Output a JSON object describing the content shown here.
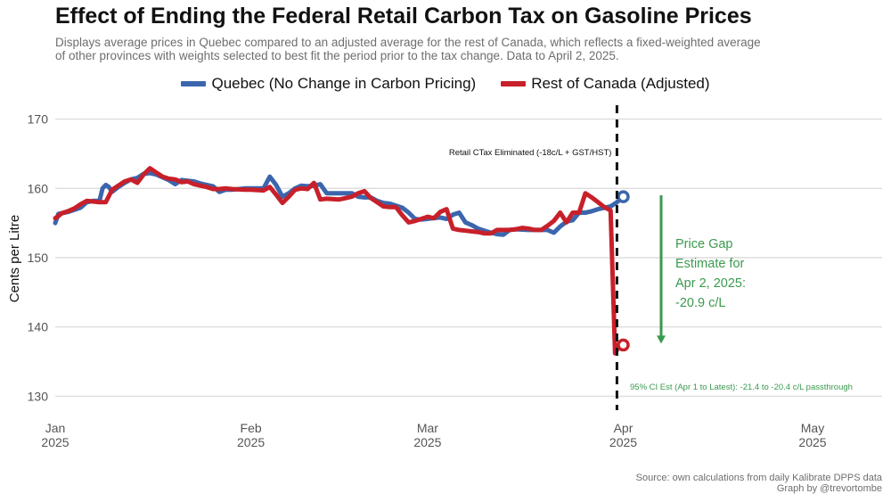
{
  "header": {
    "title": "Effect of Ending the Federal Retail Carbon Tax on Gasoline Prices",
    "subtitle": "Displays average prices in Quebec compared to an adjusted average for the rest of Canada, which reflects a fixed-weighted average of other provinces with weights selected to best fit the period prior to the tax change. Data to April 2, 2025."
  },
  "colors": {
    "quebec": "#3b66ad",
    "roc": "#c8202a",
    "gap": "#3a9a4e",
    "grid": "#dddddd"
  },
  "chart_data": {
    "type": "line",
    "title": "Effect of Ending the Federal Retail Carbon Tax on Gasoline Prices",
    "xlabel": "",
    "ylabel": "Cents per Litre",
    "ylim": [
      128,
      172
    ],
    "yticks": [
      130,
      140,
      150,
      160,
      170
    ],
    "xlim": [
      0,
      120
    ],
    "xticks": [
      {
        "day": 0,
        "label1": "Jan",
        "label2": "2025"
      },
      {
        "day": 31,
        "label1": "Feb",
        "label2": "2025"
      },
      {
        "day": 59,
        "label1": "Mar",
        "label2": "2025"
      },
      {
        "day": 90,
        "label1": "Apr",
        "label2": "2025"
      },
      {
        "day": 120,
        "label1": "May",
        "label2": "2025"
      }
    ],
    "legend_position": "top-center",
    "series": [
      {
        "name": "Quebec (No Change in Carbon Pricing)",
        "points": [
          [
            0,
            155.0
          ],
          [
            0.5,
            156.3
          ],
          [
            2,
            156.6
          ],
          [
            4,
            157.2
          ],
          [
            5,
            158.0
          ],
          [
            6,
            158.2
          ],
          [
            7,
            158.2
          ],
          [
            7.5,
            160.0
          ],
          [
            8,
            160.5
          ],
          [
            8.5,
            160.2
          ],
          [
            9,
            159.5
          ],
          [
            10,
            160.2
          ],
          [
            11,
            160.8
          ],
          [
            12,
            161.3
          ],
          [
            13,
            161.5
          ],
          [
            14,
            162.1
          ],
          [
            15,
            162.2
          ],
          [
            16,
            162.0
          ],
          [
            17,
            161.6
          ],
          [
            18,
            161.2
          ],
          [
            19,
            160.6
          ],
          [
            20,
            161.2
          ],
          [
            21,
            161.1
          ],
          [
            22,
            161.0
          ],
          [
            23,
            160.7
          ],
          [
            24,
            160.5
          ],
          [
            25,
            160.3
          ],
          [
            26,
            159.5
          ],
          [
            27,
            159.8
          ],
          [
            28,
            159.8
          ],
          [
            30,
            160.0
          ],
          [
            31,
            160.0
          ],
          [
            33,
            160.0
          ],
          [
            34,
            161.7
          ],
          [
            35,
            160.5
          ],
          [
            36,
            158.8
          ],
          [
            37,
            159.3
          ],
          [
            38,
            160.0
          ],
          [
            39,
            160.4
          ],
          [
            40,
            160.3
          ],
          [
            41,
            160.4
          ],
          [
            42,
            160.6
          ],
          [
            43,
            159.3
          ],
          [
            44,
            159.3
          ],
          [
            47,
            159.3
          ],
          [
            48,
            158.8
          ],
          [
            49,
            158.7
          ],
          [
            50,
            158.7
          ],
          [
            51,
            158.2
          ],
          [
            52,
            157.9
          ],
          [
            53,
            157.8
          ],
          [
            55,
            157.2
          ],
          [
            56,
            156.5
          ],
          [
            57,
            155.6
          ],
          [
            58,
            155.5
          ],
          [
            60,
            155.7
          ],
          [
            61,
            155.8
          ],
          [
            62,
            155.6
          ],
          [
            63,
            156.2
          ],
          [
            64,
            156.5
          ],
          [
            65,
            155.1
          ],
          [
            66,
            154.7
          ],
          [
            67,
            154.2
          ],
          [
            68,
            153.9
          ],
          [
            69,
            153.6
          ],
          [
            70,
            153.4
          ],
          [
            71,
            153.3
          ],
          [
            72,
            154.0
          ],
          [
            73,
            154.1
          ],
          [
            75,
            154.0
          ],
          [
            76,
            154.0
          ],
          [
            78,
            154.0
          ],
          [
            79,
            153.6
          ],
          [
            80,
            154.5
          ],
          [
            81,
            155.2
          ],
          [
            82,
            155.4
          ],
          [
            83,
            156.5
          ],
          [
            84,
            156.5
          ],
          [
            85,
            156.7
          ],
          [
            86,
            157.0
          ],
          [
            87,
            157.2
          ],
          [
            88,
            157.4
          ],
          [
            89,
            158.0
          ],
          [
            90,
            158.8
          ]
        ]
      },
      {
        "name": "Rest of Canada (Adjusted)",
        "points": [
          [
            0,
            155.7
          ],
          [
            0.5,
            156.0
          ],
          [
            1,
            156.4
          ],
          [
            2,
            156.7
          ],
          [
            3,
            157.1
          ],
          [
            4,
            157.7
          ],
          [
            5,
            158.2
          ],
          [
            6,
            158.1
          ],
          [
            7,
            158.0
          ],
          [
            8,
            158.0
          ],
          [
            9,
            159.8
          ],
          [
            10,
            160.4
          ],
          [
            11,
            161.0
          ],
          [
            12,
            161.3
          ],
          [
            13,
            160.8
          ],
          [
            14,
            162.0
          ],
          [
            15,
            162.9
          ],
          [
            16,
            162.3
          ],
          [
            17,
            161.7
          ],
          [
            18,
            161.4
          ],
          [
            19,
            161.3
          ],
          [
            20,
            160.9
          ],
          [
            21,
            161.0
          ],
          [
            22,
            160.6
          ],
          [
            23,
            160.4
          ],
          [
            24,
            160.2
          ],
          [
            25,
            159.9
          ],
          [
            26,
            159.9
          ],
          [
            27,
            160.0
          ],
          [
            28,
            159.9
          ],
          [
            30,
            159.8
          ],
          [
            31,
            159.8
          ],
          [
            33,
            159.7
          ],
          [
            34,
            160.2
          ],
          [
            35,
            159.1
          ],
          [
            36,
            157.9
          ],
          [
            37,
            158.8
          ],
          [
            38,
            159.8
          ],
          [
            39,
            160.0
          ],
          [
            40,
            159.9
          ],
          [
            41,
            160.8
          ],
          [
            42,
            158.4
          ],
          [
            43,
            158.5
          ],
          [
            45,
            158.4
          ],
          [
            46,
            158.6
          ],
          [
            47,
            158.8
          ],
          [
            48,
            159.3
          ],
          [
            49,
            159.6
          ],
          [
            50,
            158.6
          ],
          [
            51,
            158.0
          ],
          [
            52,
            157.4
          ],
          [
            53,
            157.3
          ],
          [
            54,
            157.3
          ],
          [
            55,
            156.1
          ],
          [
            56,
            155.1
          ],
          [
            57,
            155.3
          ],
          [
            58,
            155.6
          ],
          [
            59,
            155.9
          ],
          [
            60,
            155.7
          ],
          [
            61,
            156.6
          ],
          [
            62,
            157.0
          ],
          [
            63,
            154.2
          ],
          [
            64,
            154.0
          ],
          [
            65,
            153.9
          ],
          [
            66,
            153.8
          ],
          [
            67,
            153.7
          ],
          [
            68,
            153.5
          ],
          [
            69,
            153.5
          ],
          [
            70,
            154.0
          ],
          [
            71,
            154.0
          ],
          [
            72,
            154.0
          ],
          [
            73,
            154.1
          ],
          [
            74,
            154.3
          ],
          [
            75,
            154.2
          ],
          [
            76,
            154.0
          ],
          [
            77,
            154.0
          ],
          [
            78,
            154.6
          ],
          [
            79,
            155.3
          ],
          [
            80,
            156.5
          ],
          [
            81,
            155.1
          ],
          [
            82,
            156.5
          ],
          [
            83,
            156.5
          ],
          [
            84,
            159.3
          ],
          [
            85,
            158.7
          ],
          [
            86,
            158.0
          ],
          [
            87,
            157.3
          ],
          [
            88,
            156.8
          ],
          [
            88.7,
            136.2
          ],
          [
            89.2,
            137.0
          ],
          [
            90,
            137.4
          ]
        ]
      }
    ],
    "endpoints": [
      {
        "series": "Quebec (No Change in Carbon Pricing)",
        "day": 90,
        "value": 158.8
      },
      {
        "series": "Rest of Canada (Adjusted)",
        "day": 90,
        "value": 137.4
      }
    ],
    "annotations": {
      "vline_day": 89,
      "vline_label": "Retail CTax Eliminated (-18c/L + GST/HST)",
      "gap_arrow": {
        "day": 96,
        "from": 159.0,
        "to": 137.6
      },
      "gap_label": [
        "Price Gap",
        "Estimate for",
        "Apr 2, 2025:",
        "-20.9 c/L"
      ],
      "ci_label": "95% CI Est (Apr 1 to Latest):  -21.4 to -20.4 c/L passthrough"
    }
  },
  "footer": {
    "source": "Source: own calculations from daily Kalibrate DPPS data",
    "credit": "Graph by @trevortombe"
  }
}
